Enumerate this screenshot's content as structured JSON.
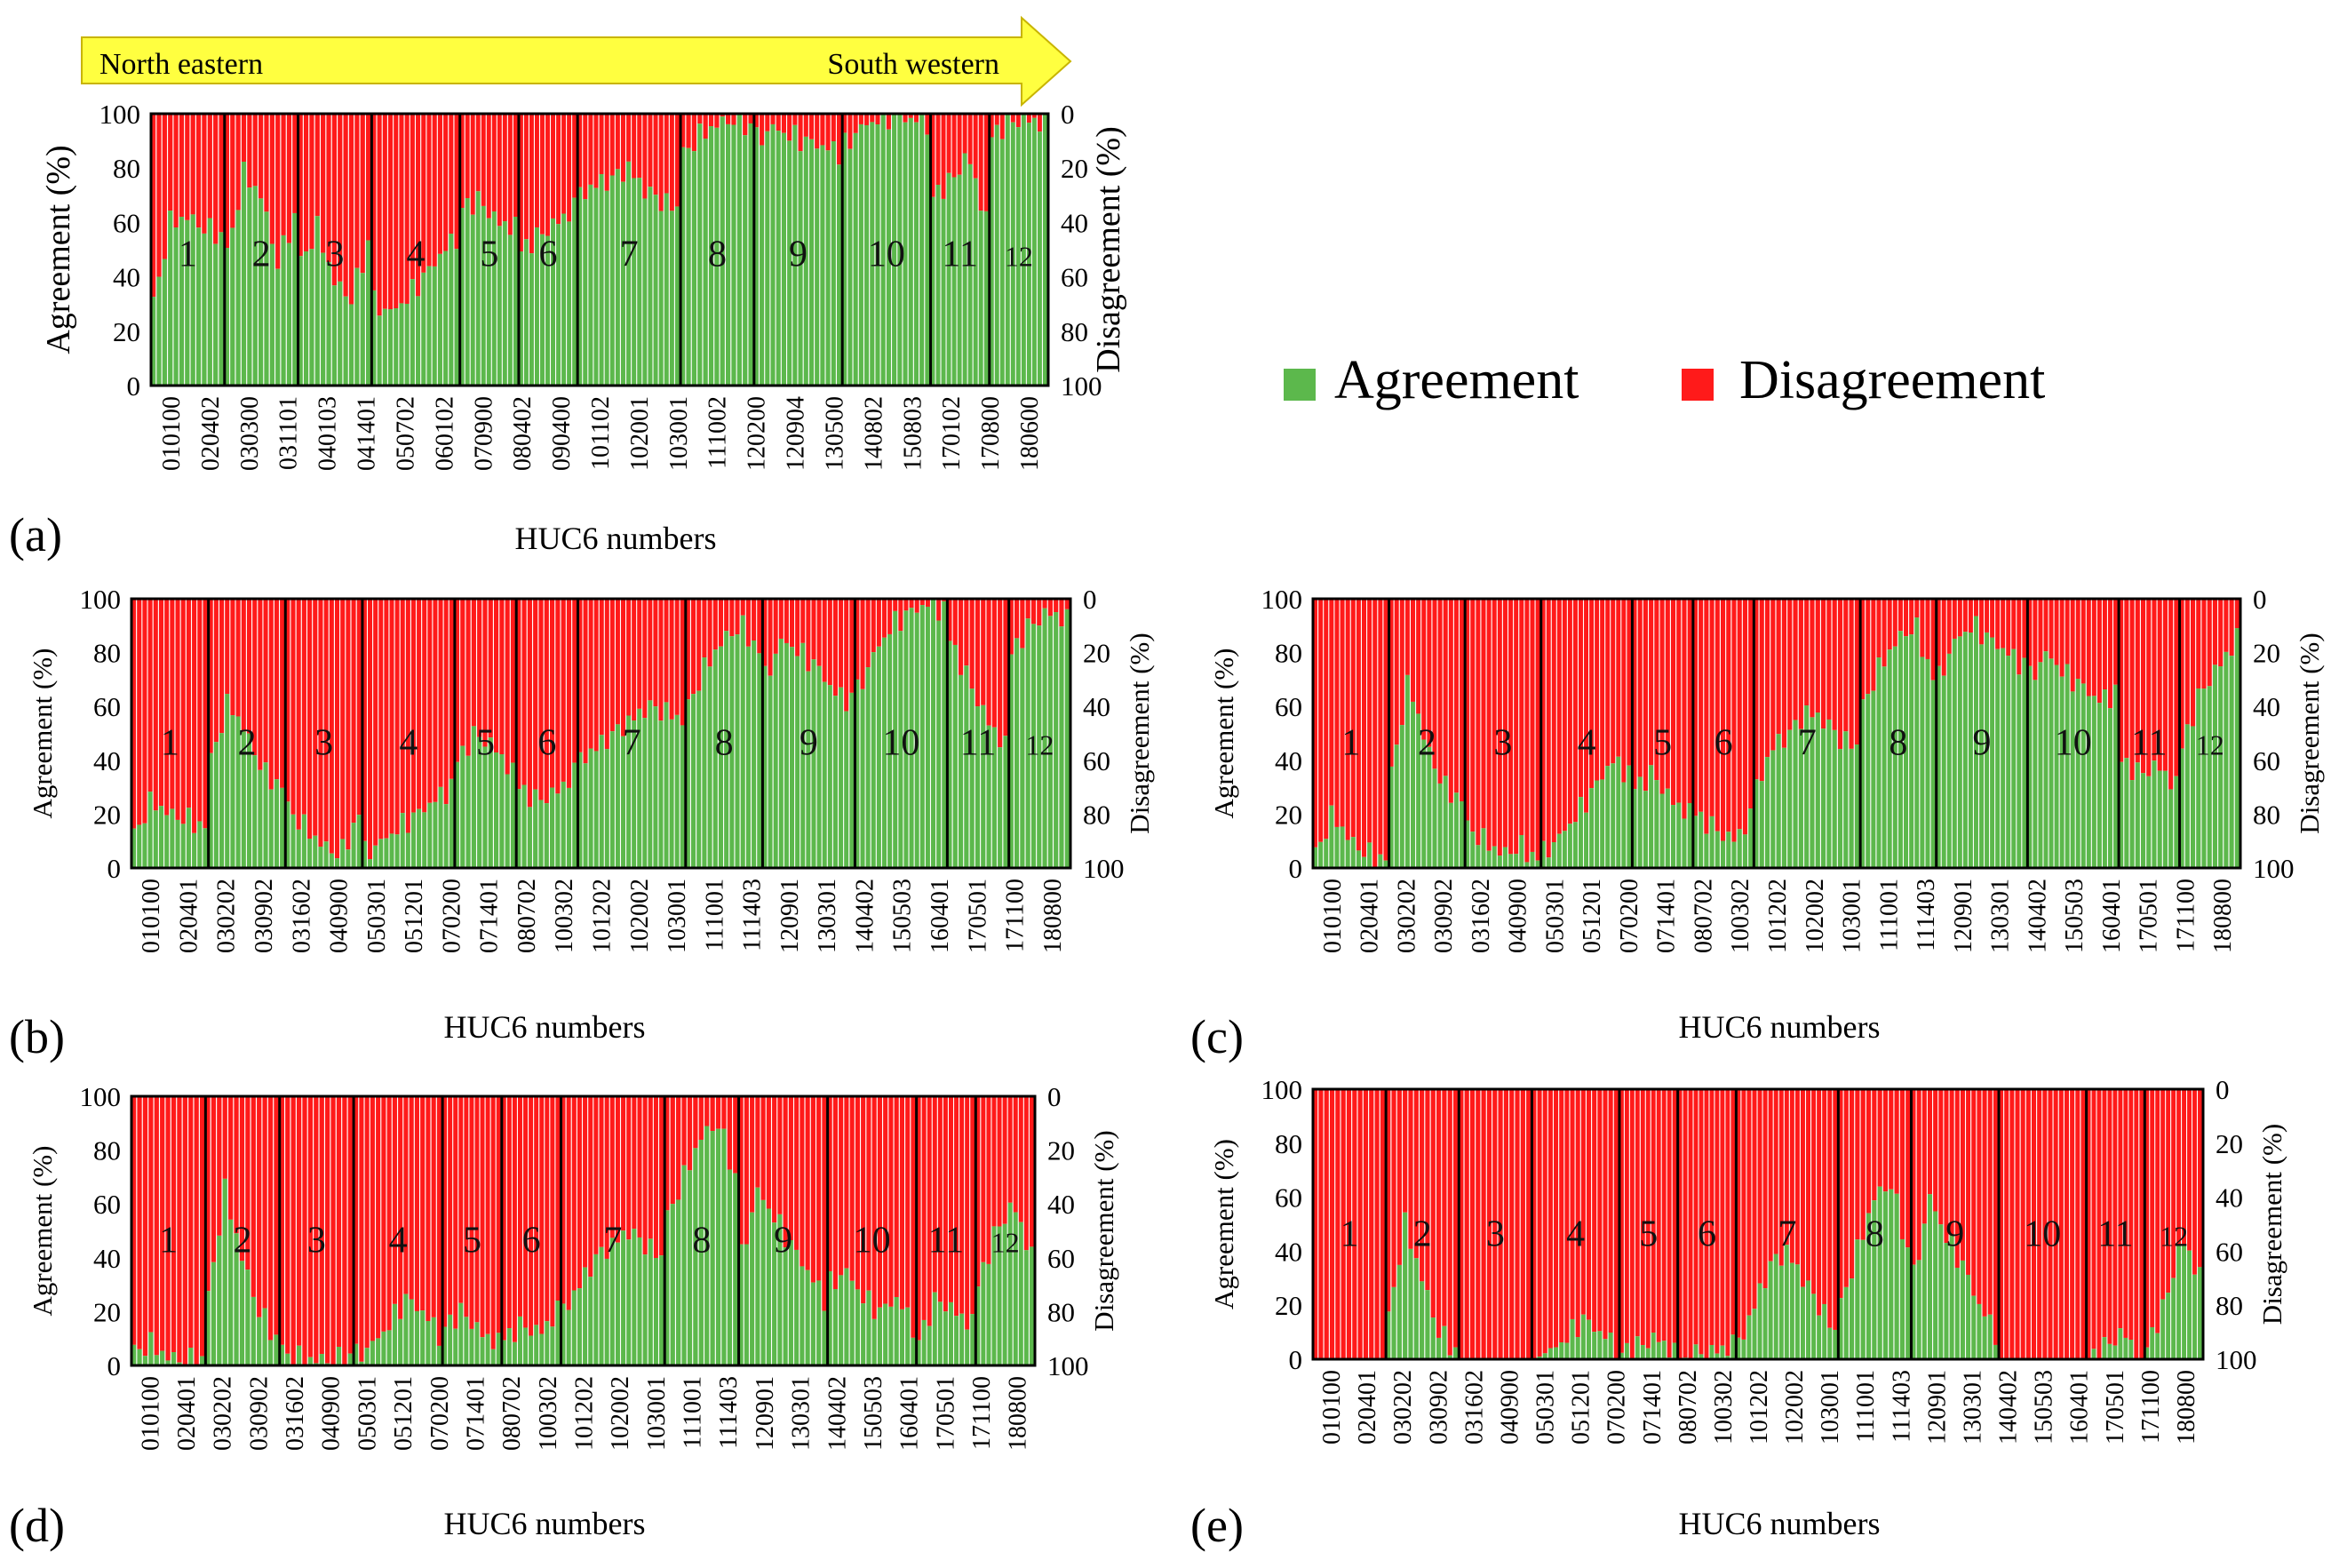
{
  "figure": {
    "arrow": {
      "left_label": "North eastern",
      "right_label": "South western",
      "fill": "#ffff40"
    },
    "legend": {
      "agreement": "Agreement",
      "disagreement": "Disagreement"
    },
    "colors": {
      "agreement": "#5cb84c",
      "disagreement": "#ff1a1a",
      "frame": "#000000"
    }
  },
  "chart_data": [
    {
      "id": "a",
      "panel": "(a)",
      "type": "bar",
      "stacked": true,
      "xlabel": "HUC6 numbers",
      "ylabel_left": "Agreement (%)",
      "ylabel_right": "Disagreement (%)",
      "yticks_left": [
        "0",
        "20",
        "40",
        "60",
        "80",
        "100"
      ],
      "yticks_right": [
        "100",
        "80",
        "60",
        "40",
        "20",
        "0"
      ],
      "ylim": [
        0,
        100
      ],
      "categories": [
        "010100",
        "020402",
        "030300",
        "031101",
        "040103",
        "041401",
        "050702",
        "060102",
        "070900",
        "080402",
        "090400",
        "101102",
        "102001",
        "103001",
        "111002",
        "120200",
        "120904",
        "130500",
        "140802",
        "150803",
        "170102",
        "170800",
        "180600"
      ],
      "regions": [
        {
          "label": "1",
          "agreement": [
            30,
            60,
            62,
            58,
            55
          ]
        },
        {
          "label": "2",
          "agreement": [
            48,
            78,
            70,
            45,
            62
          ]
        },
        {
          "label": "3",
          "agreement": [
            45,
            58,
            38,
            32,
            52
          ]
        },
        {
          "label": "4",
          "agreement": [
            30,
            27,
            32,
            40,
            48,
            55
          ]
        },
        {
          "label": "5",
          "agreement": [
            66,
            68,
            60,
            58
          ]
        },
        {
          "label": "6",
          "agreement": [
            50,
            55,
            60,
            65
          ]
        },
        {
          "label": "7",
          "agreement": [
            70,
            74,
            76,
            80,
            72,
            68,
            65
          ]
        },
        {
          "label": "8",
          "agreement": [
            85,
            92,
            96,
            98,
            95
          ]
        },
        {
          "label": "9",
          "agreement": [
            90,
            95,
            92,
            90,
            88,
            86
          ]
        },
        {
          "label": "10",
          "agreement": [
            88,
            95,
            98,
            99,
            98,
            97
          ]
        },
        {
          "label": "11",
          "agreement": [
            70,
            75,
            85,
            60
          ]
        },
        {
          "label": "12",
          "agreement": [
            92,
            97,
            98,
            96
          ]
        }
      ]
    },
    {
      "id": "b",
      "panel": "(b)",
      "type": "bar",
      "stacked": true,
      "xlabel": "HUC6 numbers",
      "ylabel_left": "Agreement (%)",
      "ylabel_right": "Disagreement (%)",
      "yticks_left": [
        "0",
        "20",
        "40",
        "60",
        "80",
        "100"
      ],
      "yticks_right": [
        "100",
        "80",
        "60",
        "40",
        "20",
        "0"
      ],
      "ylim": [
        0,
        100
      ],
      "categories": [
        "010100",
        "020401",
        "030202",
        "030902",
        "031602",
        "040900",
        "050301",
        "051201",
        "070200",
        "071401",
        "080702",
        "100302",
        "101202",
        "102002",
        "103001",
        "111001",
        "111403",
        "120901",
        "130301",
        "140402",
        "150503",
        "160401",
        "170501",
        "171100",
        "180800"
      ],
      "regions": [
        {
          "label": "1",
          "agreement": [
            12,
            25,
            20,
            18,
            15
          ]
        },
        {
          "label": "2",
          "agreement": [
            40,
            62,
            50,
            35,
            30
          ]
        },
        {
          "label": "3",
          "agreement": [
            22,
            15,
            8,
            5,
            20
          ]
        },
        {
          "label": "4",
          "agreement": [
            5,
            10,
            15,
            20,
            25,
            30
          ]
        },
        {
          "label": "5",
          "agreement": [
            40,
            50,
            45,
            35
          ]
        },
        {
          "label": "6",
          "agreement": [
            30,
            25,
            28,
            35
          ]
        },
        {
          "label": "7",
          "agreement": [
            40,
            45,
            50,
            55,
            60,
            58,
            55
          ]
        },
        {
          "label": "8",
          "agreement": [
            60,
            75,
            85,
            90,
            80
          ]
        },
        {
          "label": "9",
          "agreement": [
            70,
            85,
            80,
            75,
            65,
            62
          ]
        },
        {
          "label": "10",
          "agreement": [
            65,
            80,
            90,
            95,
            98,
            96
          ]
        },
        {
          "label": "11",
          "agreement": [
            85,
            70,
            55,
            45
          ]
        },
        {
          "label": "12",
          "agreement": [
            80,
            90,
            95,
            92
          ]
        }
      ]
    },
    {
      "id": "c",
      "panel": "(c)",
      "type": "bar",
      "stacked": true,
      "xlabel": "HUC6 numbers",
      "ylabel_left": "Agreement (%)",
      "ylabel_right": "Disagreement (%)",
      "yticks_left": [
        "0",
        "20",
        "40",
        "60",
        "80",
        "100"
      ],
      "yticks_right": [
        "100",
        "80",
        "60",
        "40",
        "20",
        "0"
      ],
      "ylim": [
        0,
        100
      ],
      "categories": [
        "010100",
        "020401",
        "030202",
        "030902",
        "031602",
        "040900",
        "050301",
        "051201",
        "070200",
        "071401",
        "080702",
        "100302",
        "101202",
        "102002",
        "103001",
        "111001",
        "111403",
        "120901",
        "130301",
        "140402",
        "150503",
        "160401",
        "170501",
        "171100",
        "180800"
      ],
      "regions": [
        {
          "label": "1",
          "agreement": [
            5,
            20,
            10,
            5,
            3
          ]
        },
        {
          "label": "2",
          "agreement": [
            35,
            70,
            45,
            30,
            25
          ]
        },
        {
          "label": "3",
          "agreement": [
            15,
            10,
            5,
            8,
            3
          ]
        },
        {
          "label": "4",
          "agreement": [
            5,
            12,
            20,
            30,
            40,
            35
          ]
        },
        {
          "label": "5",
          "agreement": [
            30,
            35,
            25,
            20
          ]
        },
        {
          "label": "6",
          "agreement": [
            20,
            15,
            10,
            18
          ]
        },
        {
          "label": "7",
          "agreement": [
            30,
            45,
            50,
            58,
            55,
            48,
            45
          ]
        },
        {
          "label": "8",
          "agreement": [
            60,
            75,
            85,
            90,
            70
          ]
        },
        {
          "label": "9",
          "agreement": [
            70,
            85,
            90,
            85,
            80,
            75
          ]
        },
        {
          "label": "10",
          "agreement": [
            70,
            80,
            72,
            68,
            62,
            65
          ]
        },
        {
          "label": "11",
          "agreement": [
            40,
            35,
            38,
            30
          ]
        },
        {
          "label": "12",
          "agreement": [
            45,
            65,
            75,
            85
          ]
        }
      ]
    },
    {
      "id": "d",
      "panel": "(d)",
      "type": "bar",
      "stacked": true,
      "xlabel": "HUC6 numbers",
      "ylabel_left": "Agreement (%)",
      "ylabel_right": "Disagreement (%)",
      "yticks_left": [
        "0",
        "20",
        "40",
        "60",
        "80",
        "100"
      ],
      "yticks_right": [
        "100",
        "80",
        "60",
        "40",
        "20",
        "0"
      ],
      "ylim": [
        0,
        100
      ],
      "categories": [
        "010100",
        "020401",
        "030202",
        "030902",
        "031602",
        "040900",
        "050301",
        "051201",
        "070200",
        "071401",
        "080702",
        "100302",
        "101202",
        "102002",
        "103001",
        "111001",
        "111403",
        "120901",
        "130301",
        "140402",
        "150503",
        "160401",
        "170501",
        "171100",
        "180800"
      ],
      "regions": [
        {
          "label": "1",
          "agreement": [
            5,
            8,
            3,
            2,
            2
          ]
        },
        {
          "label": "2",
          "agreement": [
            25,
            65,
            40,
            20,
            10
          ]
        },
        {
          "label": "3",
          "agreement": [
            5,
            3,
            2,
            2,
            3
          ]
        },
        {
          "label": "4",
          "agreement": [
            3,
            8,
            15,
            25,
            20,
            12
          ]
        },
        {
          "label": "5",
          "agreement": [
            15,
            20,
            12,
            8
          ]
        },
        {
          "label": "6",
          "agreement": [
            10,
            15,
            12,
            20
          ]
        },
        {
          "label": "7",
          "agreement": [
            20,
            30,
            40,
            45,
            50,
            45,
            40
          ]
        },
        {
          "label": "8",
          "agreement": [
            55,
            70,
            85,
            90,
            70
          ]
        },
        {
          "label": "9",
          "agreement": [
            40,
            65,
            55,
            45,
            35,
            25
          ]
        },
        {
          "label": "10",
          "agreement": [
            30,
            35,
            25,
            20,
            25,
            15
          ]
        },
        {
          "label": "11",
          "agreement": [
            10,
            25,
            20,
            15
          ]
        },
        {
          "label": "12",
          "agreement": [
            30,
            50,
            60,
            40
          ]
        }
      ]
    },
    {
      "id": "e",
      "panel": "(e)",
      "type": "bar",
      "stacked": true,
      "xlabel": "HUC6 numbers",
      "ylabel_left": "Agreement (%)",
      "ylabel_right": "Disagreement (%)",
      "yticks_left": [
        "0",
        "20",
        "40",
        "60",
        "80",
        "100"
      ],
      "yticks_right": [
        "100",
        "80",
        "60",
        "40",
        "20",
        "0"
      ],
      "ylim": [
        0,
        100
      ],
      "categories": [
        "010100",
        "020401",
        "030202",
        "030902",
        "031602",
        "040900",
        "050301",
        "051201",
        "070200",
        "071401",
        "080702",
        "100302",
        "101202",
        "102002",
        "103001",
        "111001",
        "111403",
        "120901",
        "130301",
        "140402",
        "150503",
        "160401",
        "170501",
        "171100",
        "180800"
      ],
      "regions": [
        {
          "label": "1",
          "agreement": [
            0,
            0,
            0,
            0,
            0
          ]
        },
        {
          "label": "2",
          "agreement": [
            15,
            50,
            30,
            10,
            3
          ]
        },
        {
          "label": "3",
          "agreement": [
            0,
            0,
            0,
            0,
            0
          ]
        },
        {
          "label": "4",
          "agreement": [
            0,
            3,
            8,
            15,
            10,
            5
          ]
        },
        {
          "label": "5",
          "agreement": [
            3,
            5,
            8,
            2
          ]
        },
        {
          "label": "6",
          "agreement": [
            0,
            2,
            3,
            5
          ]
        },
        {
          "label": "7",
          "agreement": [
            5,
            20,
            35,
            40,
            30,
            20,
            10
          ]
        },
        {
          "label": "8",
          "agreement": [
            20,
            40,
            60,
            65,
            40
          ]
        },
        {
          "label": "9",
          "agreement": [
            30,
            60,
            45,
            35,
            20,
            10
          ]
        },
        {
          "label": "10",
          "agreement": [
            0,
            0,
            0,
            0,
            0,
            0
          ]
        },
        {
          "label": "11",
          "agreement": [
            0,
            5,
            10,
            0
          ]
        },
        {
          "label": "12",
          "agreement": [
            5,
            20,
            45,
            30
          ]
        }
      ]
    }
  ]
}
